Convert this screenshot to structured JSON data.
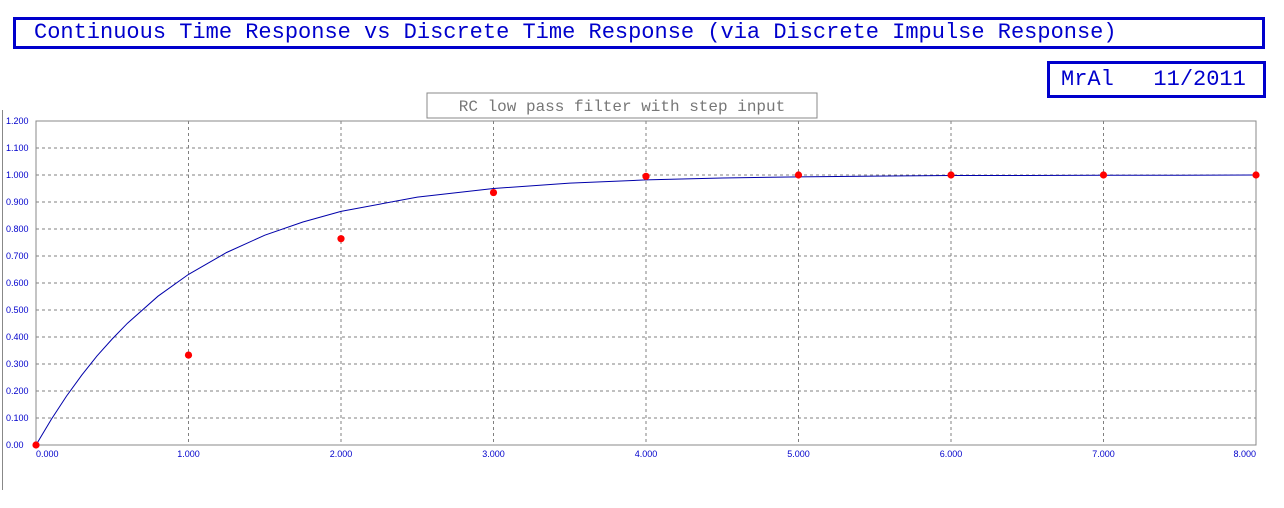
{
  "header": {
    "title": "Continuous Time Response vs Discrete Time Response (via Discrete Impulse Response)",
    "author": "MrAl   11/2011"
  },
  "colors": {
    "accent": "#0000cc",
    "continuous_line": "#0000aa",
    "discrete_points": "#ff0000",
    "grid": "#808080"
  },
  "chart_data": {
    "type": "line",
    "title": "RC low pass filter with step input",
    "xlabel": "",
    "ylabel": "",
    "xlim": [
      0,
      8
    ],
    "ylim": [
      0,
      1.2
    ],
    "grid": true,
    "x_ticks": [
      "0.000",
      "1.000",
      "2.000",
      "3.000",
      "4.000",
      "5.000",
      "6.000",
      "7.000",
      "8.000"
    ],
    "y_ticks": [
      "0.00",
      "0.100",
      "0.200",
      "0.300",
      "0.400",
      "0.500",
      "0.600",
      "0.700",
      "0.800",
      "0.900",
      "1.000",
      "1.100",
      "1.200"
    ],
    "series": [
      {
        "style": "line",
        "color": "#0000aa",
        "x": [
          0,
          0.1,
          0.2,
          0.3,
          0.4,
          0.5,
          0.6,
          0.8,
          1.0,
          1.25,
          1.5,
          1.75,
          2.0,
          2.5,
          3.0,
          3.5,
          4.0,
          4.5,
          5.0,
          5.5,
          6.0,
          6.5,
          7.0,
          7.5,
          8.0
        ],
        "y": [
          0,
          0.095,
          0.181,
          0.259,
          0.33,
          0.393,
          0.451,
          0.551,
          0.632,
          0.713,
          0.777,
          0.826,
          0.865,
          0.918,
          0.95,
          0.97,
          0.982,
          0.989,
          0.993,
          0.996,
          0.998,
          0.998,
          0.999,
          0.999,
          1.0
        ]
      },
      {
        "style": "points",
        "color": "#ff0000",
        "x": [
          0,
          1,
          2,
          3,
          4,
          5,
          6,
          7,
          8
        ],
        "y": [
          0,
          0.333,
          0.764,
          0.935,
          0.995,
          1.0,
          1.0,
          1.0,
          1.0
        ]
      }
    ]
  }
}
